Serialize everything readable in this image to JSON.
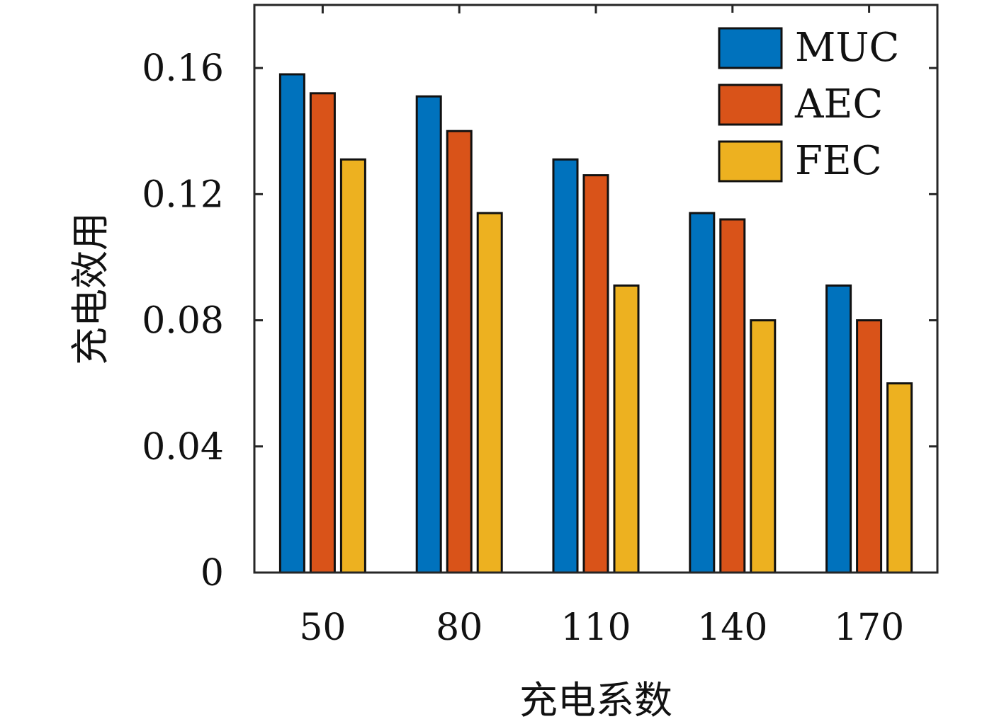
{
  "chart_data": {
    "type": "bar",
    "xlabel": "充电系数",
    "ylabel": "充电效用",
    "categories": [
      "50",
      "80",
      "110",
      "140",
      "170"
    ],
    "series": [
      {
        "name": "MUC",
        "color": "#0072BD",
        "values": [
          0.158,
          0.151,
          0.131,
          0.114,
          0.091
        ]
      },
      {
        "name": "AEC",
        "color": "#D95319",
        "values": [
          0.152,
          0.14,
          0.126,
          0.112,
          0.08
        ]
      },
      {
        "name": "FEC",
        "color": "#EDB120",
        "values": [
          0.131,
          0.114,
          0.091,
          0.08,
          0.06
        ]
      }
    ],
    "ylim": [
      0,
      0.18
    ],
    "yticks": [
      0,
      0.04,
      0.08,
      0.12,
      0.16
    ],
    "ytick_labels": [
      "0",
      "0.04",
      "0.08",
      "0.12",
      "0.16"
    ],
    "grid": false,
    "legend_position": "top-right"
  }
}
